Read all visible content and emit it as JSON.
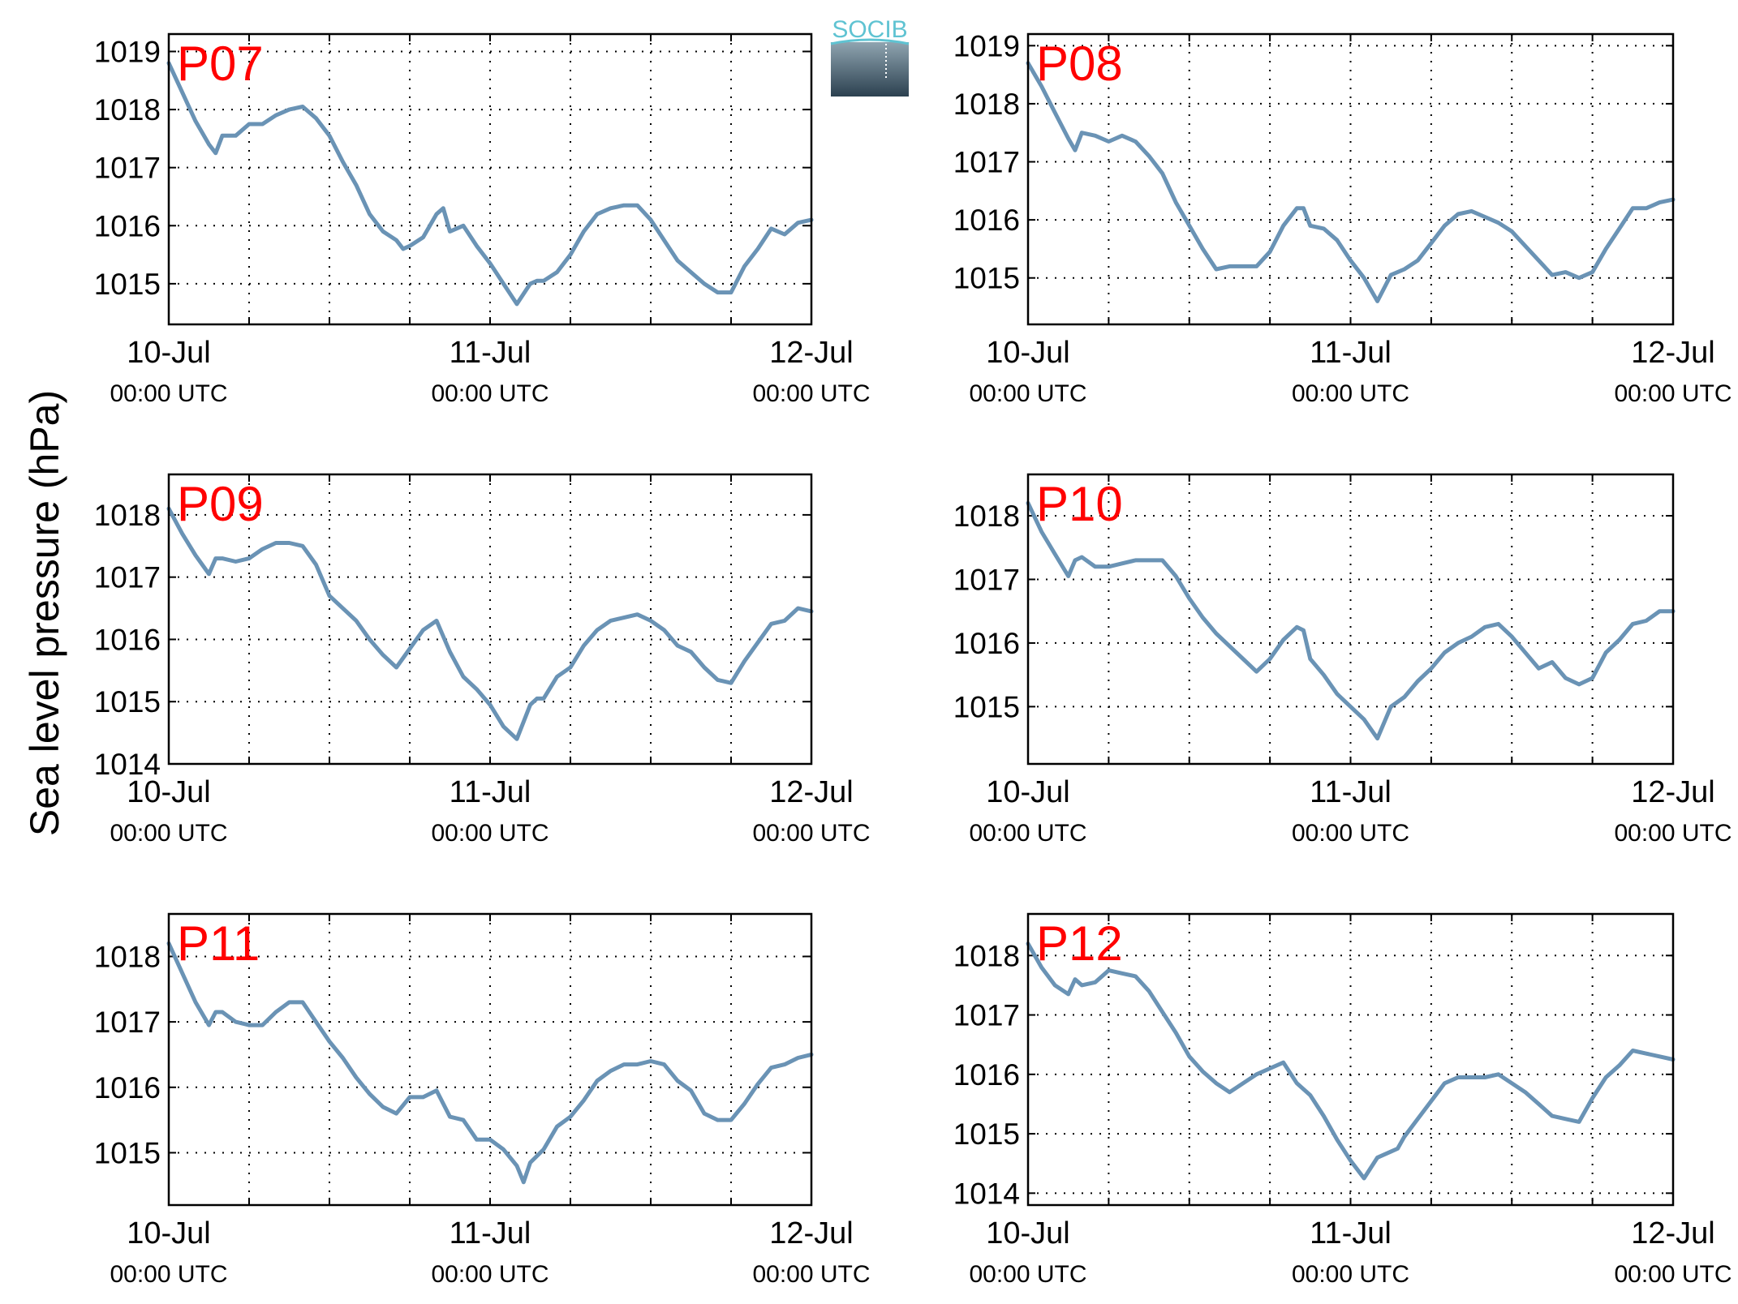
{
  "figure": {
    "ylabel": "Sea level pressure (hPa)",
    "logo_text": "SOCIB",
    "colors": {
      "line": "#6a93b5",
      "station_label": "#ff0000",
      "axes": "#000000",
      "grid": "#000000",
      "logo_top": "#5fc3d2",
      "logo_bottom": "#2c4150"
    }
  },
  "chart_data": [
    {
      "type": "line",
      "station": "P07",
      "x_ticks": [
        {
          "label": "10-Jul",
          "sub": "00:00 UTC",
          "t": 0
        },
        {
          "label": "11-Jul",
          "sub": "00:00 UTC",
          "t": 24
        },
        {
          "label": "12-Jul",
          "sub": "00:00 UTC",
          "t": 48
        }
      ],
      "xlim": [
        0,
        48
      ],
      "ylim": [
        1014.3,
        1019.3
      ],
      "yticks": [
        1015,
        1016,
        1017,
        1018,
        1019
      ],
      "grid": true,
      "series": [
        {
          "x": [
            0,
            1,
            2,
            3,
            3.5,
            4,
            5,
            6,
            7,
            8,
            9,
            10,
            11,
            12,
            13,
            14,
            15,
            16,
            17,
            17.5,
            18,
            19,
            20,
            20.5,
            21,
            22,
            23,
            24,
            25,
            26,
            27,
            27.5,
            28,
            29,
            30,
            31,
            32,
            33,
            34,
            35,
            36,
            37,
            38,
            39,
            40,
            41,
            42,
            43,
            44,
            45,
            46,
            47,
            48
          ],
          "y": [
            1018.8,
            1018.3,
            1017.8,
            1017.4,
            1017.25,
            1017.55,
            1017.55,
            1017.75,
            1017.75,
            1017.9,
            1018.0,
            1018.05,
            1017.85,
            1017.55,
            1017.1,
            1016.7,
            1016.2,
            1015.9,
            1015.75,
            1015.6,
            1015.65,
            1015.8,
            1016.2,
            1016.3,
            1015.9,
            1016.0,
            1015.65,
            1015.35,
            1015.0,
            1014.65,
            1015.0,
            1015.05,
            1015.05,
            1015.2,
            1015.5,
            1015.9,
            1016.2,
            1016.3,
            1016.35,
            1016.35,
            1016.1,
            1015.75,
            1015.4,
            1015.2,
            1015.0,
            1014.85,
            1014.85,
            1015.3,
            1015.6,
            1015.95,
            1015.85,
            1016.05,
            1016.1
          ]
        }
      ]
    },
    {
      "type": "line",
      "station": "P08",
      "x_ticks": [
        {
          "label": "10-Jul",
          "sub": "00:00 UTC",
          "t": 0
        },
        {
          "label": "11-Jul",
          "sub": "00:00 UTC",
          "t": 24
        },
        {
          "label": "12-Jul",
          "sub": "00:00 UTC",
          "t": 48
        }
      ],
      "xlim": [
        0,
        48
      ],
      "ylim": [
        1014.2,
        1019.2
      ],
      "yticks": [
        1015,
        1016,
        1017,
        1018,
        1019
      ],
      "grid": true,
      "series": [
        {
          "x": [
            0,
            1,
            2,
            3,
            3.5,
            4,
            5,
            6,
            7,
            8,
            9,
            10,
            11,
            12,
            13,
            14,
            15,
            16,
            17,
            18,
            19,
            20,
            20.5,
            21,
            22,
            23,
            24,
            25,
            26,
            27,
            28,
            29,
            30,
            31,
            32,
            33,
            34,
            35,
            36,
            37,
            38,
            39,
            40,
            41,
            42,
            43,
            44,
            45,
            46,
            47,
            48
          ],
          "y": [
            1018.7,
            1018.3,
            1017.85,
            1017.4,
            1017.2,
            1017.5,
            1017.45,
            1017.35,
            1017.45,
            1017.35,
            1017.1,
            1016.8,
            1016.3,
            1015.9,
            1015.5,
            1015.15,
            1015.2,
            1015.2,
            1015.2,
            1015.45,
            1015.9,
            1016.2,
            1016.2,
            1015.9,
            1015.85,
            1015.65,
            1015.3,
            1015.0,
            1014.6,
            1015.05,
            1015.15,
            1015.3,
            1015.6,
            1015.9,
            1016.1,
            1016.15,
            1016.05,
            1015.95,
            1015.8,
            1015.55,
            1015.3,
            1015.05,
            1015.1,
            1015.0,
            1015.1,
            1015.5,
            1015.85,
            1016.2,
            1016.2,
            1016.3,
            1016.35
          ]
        }
      ]
    },
    {
      "type": "line",
      "station": "P09",
      "x_ticks": [
        {
          "label": "10-Jul",
          "sub": "00:00 UTC",
          "t": 0
        },
        {
          "label": "11-Jul",
          "sub": "00:00 UTC",
          "t": 24
        },
        {
          "label": "12-Jul",
          "sub": "00:00 UTC",
          "t": 48
        }
      ],
      "xlim": [
        0,
        48
      ],
      "ylim": [
        1014.0,
        1018.65
      ],
      "yticks": [
        1014,
        1015,
        1016,
        1017,
        1018
      ],
      "grid": true,
      "series": [
        {
          "x": [
            0,
            1,
            2,
            3,
            3.5,
            4,
            5,
            6,
            7,
            8,
            9,
            10,
            11,
            12,
            13,
            14,
            15,
            16,
            17,
            18,
            19,
            20,
            21,
            22,
            23,
            24,
            25,
            26,
            27,
            27.5,
            28,
            29,
            30,
            31,
            32,
            33,
            34,
            35,
            36,
            37,
            38,
            39,
            40,
            41,
            42,
            43,
            44,
            45,
            46,
            47,
            48
          ],
          "y": [
            1018.1,
            1017.7,
            1017.35,
            1017.05,
            1017.3,
            1017.3,
            1017.25,
            1017.3,
            1017.45,
            1017.55,
            1017.55,
            1017.5,
            1017.2,
            1016.7,
            1016.5,
            1016.3,
            1016.0,
            1015.75,
            1015.55,
            1015.85,
            1016.15,
            1016.3,
            1015.8,
            1015.4,
            1015.2,
            1014.95,
            1014.6,
            1014.4,
            1014.95,
            1015.05,
            1015.05,
            1015.4,
            1015.55,
            1015.9,
            1016.15,
            1016.3,
            1016.35,
            1016.4,
            1016.3,
            1016.15,
            1015.9,
            1015.8,
            1015.55,
            1015.35,
            1015.3,
            1015.65,
            1015.95,
            1016.25,
            1016.3,
            1016.5,
            1016.45
          ]
        }
      ]
    },
    {
      "type": "line",
      "station": "P10",
      "x_ticks": [
        {
          "label": "10-Jul",
          "sub": "00:00 UTC",
          "t": 0
        },
        {
          "label": "11-Jul",
          "sub": "00:00 UTC",
          "t": 24
        },
        {
          "label": "12-Jul",
          "sub": "00:00 UTC",
          "t": 48
        }
      ],
      "xlim": [
        0,
        48
      ],
      "ylim": [
        1014.1,
        1018.65
      ],
      "yticks": [
        1015,
        1016,
        1017,
        1018
      ],
      "grid": true,
      "series": [
        {
          "x": [
            0,
            1,
            2,
            3,
            3.5,
            4,
            5,
            6,
            7,
            8,
            9,
            10,
            11,
            12,
            13,
            14,
            15,
            16,
            17,
            18,
            19,
            20,
            20.5,
            21,
            22,
            23,
            24,
            25,
            26,
            27,
            28,
            29,
            30,
            31,
            32,
            33,
            34,
            35,
            36,
            37,
            38,
            39,
            40,
            41,
            42,
            43,
            44,
            45,
            46,
            47,
            48
          ],
          "y": [
            1018.2,
            1017.75,
            1017.4,
            1017.05,
            1017.3,
            1017.35,
            1017.2,
            1017.2,
            1017.25,
            1017.3,
            1017.3,
            1017.3,
            1017.05,
            1016.7,
            1016.4,
            1016.15,
            1015.95,
            1015.75,
            1015.55,
            1015.75,
            1016.05,
            1016.25,
            1016.2,
            1015.75,
            1015.5,
            1015.2,
            1015.0,
            1014.8,
            1014.5,
            1015.0,
            1015.15,
            1015.4,
            1015.6,
            1015.85,
            1016.0,
            1016.1,
            1016.25,
            1016.3,
            1016.1,
            1015.85,
            1015.6,
            1015.7,
            1015.45,
            1015.35,
            1015.45,
            1015.85,
            1016.05,
            1016.3,
            1016.35,
            1016.5,
            1016.5
          ]
        }
      ]
    },
    {
      "type": "line",
      "station": "P11",
      "x_ticks": [
        {
          "label": "10-Jul",
          "sub": "00:00 UTC",
          "t": 0
        },
        {
          "label": "11-Jul",
          "sub": "00:00 UTC",
          "t": 24
        },
        {
          "label": "12-Jul",
          "sub": "00:00 UTC",
          "t": 48
        }
      ],
      "xlim": [
        0,
        48
      ],
      "ylim": [
        1014.2,
        1018.65
      ],
      "yticks": [
        1015,
        1016,
        1017,
        1018
      ],
      "grid": true,
      "series": [
        {
          "x": [
            0,
            1,
            2,
            3,
            3.5,
            4,
            5,
            6,
            7,
            8,
            9,
            10,
            11,
            12,
            13,
            14,
            15,
            16,
            17,
            18,
            19,
            20,
            21,
            22,
            23,
            24,
            25,
            26,
            26.5,
            27,
            28,
            29,
            30,
            31,
            32,
            33,
            34,
            35,
            36,
            37,
            38,
            39,
            40,
            41,
            42,
            43,
            44,
            45,
            46,
            47,
            48
          ],
          "y": [
            1018.2,
            1017.75,
            1017.3,
            1016.95,
            1017.15,
            1017.15,
            1017.0,
            1016.95,
            1016.95,
            1017.15,
            1017.3,
            1017.3,
            1017.0,
            1016.7,
            1016.45,
            1016.15,
            1015.9,
            1015.7,
            1015.6,
            1015.85,
            1015.85,
            1015.95,
            1015.55,
            1015.5,
            1015.2,
            1015.2,
            1015.05,
            1014.8,
            1014.55,
            1014.85,
            1015.05,
            1015.4,
            1015.55,
            1015.8,
            1016.1,
            1016.25,
            1016.35,
            1016.35,
            1016.4,
            1016.35,
            1016.1,
            1015.95,
            1015.6,
            1015.5,
            1015.5,
            1015.75,
            1016.05,
            1016.3,
            1016.35,
            1016.45,
            1016.5
          ]
        }
      ]
    },
    {
      "type": "line",
      "station": "P12",
      "x_ticks": [
        {
          "label": "10-Jul",
          "sub": "00:00 UTC",
          "t": 0
        },
        {
          "label": "11-Jul",
          "sub": "00:00 UTC",
          "t": 24
        },
        {
          "label": "12-Jul",
          "sub": "00:00 UTC",
          "t": 48
        }
      ],
      "xlim": [
        0,
        48
      ],
      "ylim": [
        1013.8,
        1018.7
      ],
      "yticks": [
        1014,
        1015,
        1016,
        1017,
        1018
      ],
      "grid": true,
      "series": [
        {
          "x": [
            0,
            1,
            2,
            3,
            3.5,
            4,
            5,
            6,
            7,
            8,
            9,
            10,
            11,
            12,
            13,
            14,
            15,
            16,
            17,
            18,
            19,
            20,
            21,
            22,
            23,
            24,
            25,
            26,
            27,
            27.5,
            28,
            29,
            30,
            31,
            32,
            33,
            34,
            35,
            36,
            37,
            38,
            39,
            40,
            41,
            42,
            43,
            44,
            45,
            46,
            47,
            48
          ],
          "y": [
            1018.2,
            1017.8,
            1017.5,
            1017.35,
            1017.6,
            1017.5,
            1017.55,
            1017.75,
            1017.7,
            1017.65,
            1017.4,
            1017.05,
            1016.7,
            1016.3,
            1016.05,
            1015.85,
            1015.7,
            1015.85,
            1016.0,
            1016.1,
            1016.2,
            1015.85,
            1015.65,
            1015.3,
            1014.9,
            1014.55,
            1014.25,
            1014.6,
            1014.7,
            1014.75,
            1014.95,
            1015.25,
            1015.55,
            1015.85,
            1015.95,
            1015.95,
            1015.95,
            1016.0,
            1015.85,
            1015.7,
            1015.5,
            1015.3,
            1015.25,
            1015.2,
            1015.6,
            1015.95,
            1016.15,
            1016.4,
            1016.35,
            1016.3,
            1016.25
          ]
        }
      ]
    }
  ]
}
